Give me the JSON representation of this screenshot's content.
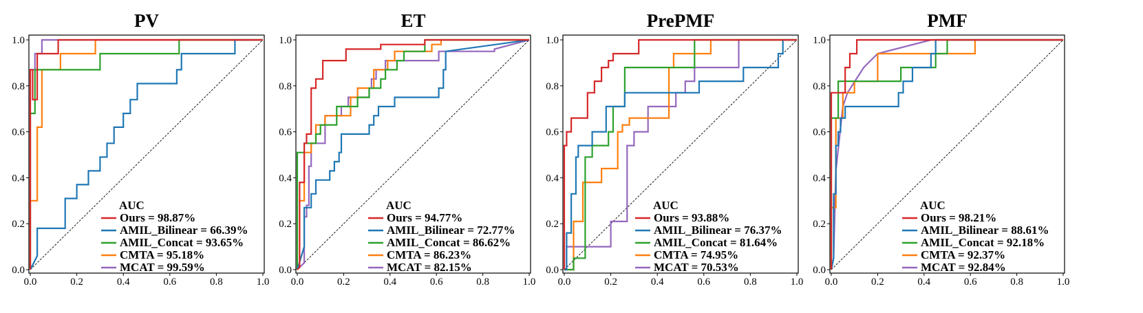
{
  "colors": {
    "Ours": "#d62728",
    "AMIL_Bilinear": "#1f77b4",
    "AMIL_Concat": "#2ca02c",
    "CMTA": "#ff7f0e",
    "MCAT": "#9467bd"
  },
  "chart_data": [
    {
      "type": "line",
      "title": "PV",
      "xlabel": "",
      "ylabel": "",
      "xlim": [
        0,
        1
      ],
      "ylim": [
        0,
        1
      ],
      "xticks": [
        "0.0",
        "0.2",
        "0.4",
        "0.6",
        "0.8",
        "1.0"
      ],
      "yticks": [
        "0.0",
        "0.2",
        "0.4",
        "0.6",
        "0.8",
        "1.0"
      ],
      "legend_title": "AUC",
      "series": [
        {
          "name": "Ours",
          "label": "Ours = 98.87%",
          "fpr": [
            0,
            0,
            0.01,
            0.01,
            0.03,
            0.03,
            0.12,
            0.12,
            1
          ],
          "tpr": [
            0,
            0.87,
            0.87,
            0.74,
            0.74,
            0.94,
            0.94,
            1,
            1
          ]
        },
        {
          "name": "AMIL_Bilinear",
          "label": "AMIL_Bilinear = 66.39%",
          "fpr": [
            0,
            0.03,
            0.03,
            0.15,
            0.15,
            0.2,
            0.2,
            0.25,
            0.25,
            0.3,
            0.3,
            0.33,
            0.33,
            0.36,
            0.36,
            0.4,
            0.4,
            0.43,
            0.43,
            0.46,
            0.46,
            0.63,
            0.63,
            0.65,
            0.65,
            0.88,
            0.88,
            1
          ],
          "tpr": [
            0,
            0.06,
            0.18,
            0.18,
            0.31,
            0.31,
            0.37,
            0.37,
            0.43,
            0.43,
            0.49,
            0.49,
            0.55,
            0.55,
            0.62,
            0.62,
            0.68,
            0.68,
            0.74,
            0.74,
            0.81,
            0.81,
            0.87,
            0.87,
            0.94,
            0.94,
            1,
            1
          ]
        },
        {
          "name": "AMIL_Concat",
          "label": "AMIL_Concat = 93.65%",
          "fpr": [
            0,
            0,
            0.02,
            0.02,
            0.3,
            0.3,
            0.64,
            0.64,
            1
          ],
          "tpr": [
            0,
            0.68,
            0.68,
            0.87,
            0.87,
            0.94,
            0.94,
            1,
            1
          ]
        },
        {
          "name": "CMTA",
          "label": "CMTA = 95.18%",
          "fpr": [
            0,
            0,
            0.03,
            0.03,
            0.05,
            0.05,
            0.13,
            0.13,
            0.28,
            0.28,
            1
          ],
          "tpr": [
            0,
            0.3,
            0.3,
            0.62,
            0.62,
            0.87,
            0.87,
            0.94,
            0.94,
            1,
            1
          ]
        },
        {
          "name": "MCAT",
          "label": "MCAT = 99.59%",
          "fpr": [
            0,
            0,
            0.02,
            0.02,
            0.05,
            0.05,
            1
          ],
          "tpr": [
            0,
            0.87,
            0.87,
            0.94,
            0.94,
            1,
            1
          ]
        }
      ]
    },
    {
      "type": "line",
      "title": "ET",
      "xlabel": "",
      "ylabel": "",
      "xlim": [
        0,
        1
      ],
      "ylim": [
        0,
        1
      ],
      "xticks": [
        "0.0",
        "0.2",
        "0.4",
        "0.6",
        "0.8",
        "1.0"
      ],
      "yticks": [
        "0.0",
        "0.2",
        "0.4",
        "0.6",
        "0.8",
        "1.0"
      ],
      "legend_title": "AUC",
      "series": [
        {
          "name": "Ours",
          "label": "Ours = 94.77%",
          "fpr": [
            0,
            0.01,
            0.01,
            0.03,
            0.03,
            0.04,
            0.04,
            0.06,
            0.06,
            0.08,
            0.08,
            0.11,
            0.11,
            0.17,
            0.17,
            0.21,
            0.21,
            0.36,
            0.36,
            0.55,
            0.55,
            1
          ],
          "tpr": [
            0,
            0.01,
            0.38,
            0.38,
            0.55,
            0.55,
            0.59,
            0.59,
            0.79,
            0.79,
            0.83,
            0.83,
            0.91,
            0.91,
            0.91,
            0.91,
            0.96,
            0.96,
            0.98,
            0.98,
            1,
            1
          ]
        },
        {
          "name": "AMIL_Bilinear",
          "label": "AMIL_Bilinear = 72.77%",
          "fpr": [
            0,
            0.03,
            0.03,
            0.06,
            0.06,
            0.08,
            0.08,
            0.14,
            0.14,
            0.16,
            0.16,
            0.18,
            0.18,
            0.19,
            0.19,
            0.31,
            0.31,
            0.33,
            0.33,
            0.35,
            0.35,
            0.42,
            0.42,
            0.61,
            0.61,
            0.63,
            0.63,
            0.64,
            0.64,
            1
          ],
          "tpr": [
            0,
            0.1,
            0.27,
            0.27,
            0.33,
            0.33,
            0.39,
            0.39,
            0.43,
            0.43,
            0.47,
            0.47,
            0.51,
            0.51,
            0.59,
            0.59,
            0.63,
            0.63,
            0.67,
            0.67,
            0.71,
            0.71,
            0.75,
            0.75,
            0.79,
            0.79,
            0.87,
            0.87,
            0.95,
            1
          ]
        },
        {
          "name": "AMIL_Concat",
          "label": "AMIL_Concat = 86.62%",
          "fpr": [
            0,
            0,
            0.03,
            0.03,
            0.08,
            0.08,
            0.1,
            0.1,
            0.17,
            0.17,
            0.26,
            0.26,
            0.31,
            0.31,
            0.36,
            0.36,
            0.38,
            0.38,
            0.43,
            0.43,
            0.46,
            0.46,
            0.55,
            0.55,
            0.63,
            0.63,
            1
          ],
          "tpr": [
            0,
            0.51,
            0.51,
            0.55,
            0.55,
            0.59,
            0.59,
            0.63,
            0.63,
            0.71,
            0.71,
            0.75,
            0.75,
            0.79,
            0.79,
            0.83,
            0.83,
            0.87,
            0.87,
            0.91,
            0.91,
            0.95,
            0.95,
            1,
            1,
            1,
            1
          ]
        },
        {
          "name": "CMTA",
          "label": "CMTA = 86.23%",
          "fpr": [
            0,
            0.01,
            0.01,
            0.03,
            0.03,
            0.06,
            0.06,
            0.08,
            0.08,
            0.12,
            0.12,
            0.23,
            0.23,
            0.26,
            0.26,
            0.33,
            0.33,
            0.39,
            0.39,
            0.42,
            0.42,
            0.58,
            0.58,
            0.62,
            0.62,
            1
          ],
          "tpr": [
            0,
            0.01,
            0.3,
            0.3,
            0.51,
            0.51,
            0.55,
            0.55,
            0.63,
            0.63,
            0.67,
            0.67,
            0.75,
            0.75,
            0.79,
            0.79,
            0.87,
            0.87,
            0.91,
            0.91,
            0.95,
            0.95,
            0.98,
            0.98,
            1,
            1
          ]
        },
        {
          "name": "MCAT",
          "label": "MCAT = 82.15%",
          "fpr": [
            0,
            0.03,
            0.03,
            0.04,
            0.04,
            0.05,
            0.05,
            0.06,
            0.06,
            0.12,
            0.12,
            0.19,
            0.19,
            0.22,
            0.22,
            0.31,
            0.31,
            0.32,
            0.32,
            0.34,
            0.34,
            0.38,
            0.38,
            0.45,
            0.45,
            0.61,
            0.61,
            0.85,
            0.85,
            1
          ],
          "tpr": [
            0,
            0.03,
            0.23,
            0.23,
            0.28,
            0.28,
            0.45,
            0.45,
            0.55,
            0.55,
            0.67,
            0.67,
            0.71,
            0.71,
            0.75,
            0.75,
            0.79,
            0.79,
            0.83,
            0.83,
            0.87,
            0.87,
            0.91,
            0.91,
            0.91,
            0.91,
            0.95,
            0.95,
            0.96,
            1
          ]
        }
      ]
    },
    {
      "type": "line",
      "title": "PrePMF",
      "xlabel": "",
      "ylabel": "",
      "xlim": [
        0,
        1
      ],
      "ylim": [
        0,
        1
      ],
      "xticks": [
        "0.0",
        "0.2",
        "0.4",
        "0.6",
        "0.8",
        "1.0"
      ],
      "yticks": [
        "0.0",
        "0.2",
        "0.4",
        "0.6",
        "0.8",
        "1.0"
      ],
      "legend_title": "AUC",
      "series": [
        {
          "name": "Ours",
          "label": "Ours = 93.88%",
          "fpr": [
            0,
            0,
            0.01,
            0.01,
            0.03,
            0.03,
            0.06,
            0.06,
            0.1,
            0.1,
            0.13,
            0.13,
            0.16,
            0.16,
            0.19,
            0.19,
            0.21,
            0.21,
            0.23,
            0.23,
            0.32,
            0.32,
            0.34,
            0.34,
            1
          ],
          "tpr": [
            0,
            0.54,
            0.54,
            0.6,
            0.6,
            0.66,
            0.66,
            0.66,
            0.66,
            0.77,
            0.77,
            0.82,
            0.82,
            0.88,
            0.88,
            0.91,
            0.91,
            0.94,
            0.94,
            0.94,
            0.94,
            1,
            1,
            1,
            1
          ]
        },
        {
          "name": "AMIL_Bilinear",
          "label": "AMIL_Bilinear = 76.37%",
          "fpr": [
            0,
            0.01,
            0.01,
            0.03,
            0.03,
            0.05,
            0.05,
            0.06,
            0.06,
            0.12,
            0.12,
            0.18,
            0.18,
            0.26,
            0.26,
            0.45,
            0.45,
            0.58,
            0.58,
            0.77,
            0.77,
            0.92,
            0.92,
            0.94,
            0.94,
            1
          ],
          "tpr": [
            0,
            0,
            0.16,
            0.16,
            0.33,
            0.33,
            0.49,
            0.49,
            0.54,
            0.54,
            0.6,
            0.6,
            0.71,
            0.71,
            0.77,
            0.77,
            0.77,
            0.77,
            0.82,
            0.82,
            0.88,
            0.88,
            0.94,
            0.94,
            1,
            1
          ]
        },
        {
          "name": "AMIL_Concat",
          "label": "AMIL_Concat = 81.64%",
          "fpr": [
            0,
            0.04,
            0.04,
            0.09,
            0.09,
            0.12,
            0.12,
            0.19,
            0.19,
            0.21,
            0.21,
            0.26,
            0.26,
            0.56,
            0.56,
            1
          ],
          "tpr": [
            0,
            0,
            0.05,
            0.05,
            0.49,
            0.49,
            0.54,
            0.54,
            0.6,
            0.6,
            0.71,
            0.71,
            0.88,
            0.88,
            1,
            1
          ]
        },
        {
          "name": "CMTA",
          "label": "CMTA = 74.95%",
          "fpr": [
            0,
            0.04,
            0.04,
            0.08,
            0.08,
            0.1,
            0.1,
            0.16,
            0.16,
            0.23,
            0.23,
            0.25,
            0.25,
            0.28,
            0.28,
            0.45,
            0.45,
            0.47,
            0.47,
            0.63,
            0.63,
            0.77,
            0.77,
            1
          ],
          "tpr": [
            0,
            0,
            0.21,
            0.21,
            0.38,
            0.38,
            0.38,
            0.38,
            0.44,
            0.44,
            0.6,
            0.6,
            0.63,
            0.63,
            0.66,
            0.66,
            0.88,
            0.88,
            0.94,
            0.94,
            1,
            1,
            1,
            1
          ]
        },
        {
          "name": "MCAT",
          "label": "MCAT = 70.53%",
          "fpr": [
            0,
            0.01,
            0.01,
            0.12,
            0.12,
            0.2,
            0.2,
            0.27,
            0.27,
            0.3,
            0.3,
            0.36,
            0.36,
            0.46,
            0.46,
            0.48,
            0.48,
            0.52,
            0.52,
            0.56,
            0.56,
            0.75,
            0.75,
            1
          ],
          "tpr": [
            0,
            0,
            0.1,
            0.1,
            0.1,
            0.1,
            0.21,
            0.21,
            0.54,
            0.54,
            0.6,
            0.6,
            0.71,
            0.71,
            0.71,
            0.71,
            0.77,
            0.77,
            0.82,
            0.82,
            0.88,
            0.88,
            1,
            1
          ]
        }
      ]
    },
    {
      "type": "line",
      "title": "PMF",
      "xlabel": "",
      "ylabel": "",
      "xlim": [
        0,
        1
      ],
      "ylim": [
        0,
        1
      ],
      "xticks": [
        "0.0",
        "0.2",
        "0.4",
        "0.6",
        "0.8",
        "1.0"
      ],
      "yticks": [
        "0.0",
        "0.2",
        "0.4",
        "0.6",
        "0.8",
        "1.0"
      ],
      "legend_title": "AUC",
      "series": [
        {
          "name": "Ours",
          "label": "Ours = 98.21%",
          "fpr": [
            0,
            0,
            0.06,
            0.06,
            0.08,
            0.08,
            0.11,
            0.11,
            1
          ],
          "tpr": [
            0,
            0.77,
            0.77,
            0.88,
            0.88,
            0.94,
            0.94,
            1,
            1
          ]
        },
        {
          "name": "AMIL_Bilinear",
          "label": "AMIL_Bilinear = 88.61%",
          "fpr": [
            0,
            0.01,
            0.01,
            0.02,
            0.02,
            0.03,
            0.03,
            0.04,
            0.04,
            0.06,
            0.06,
            0.29,
            0.29,
            0.31,
            0.31,
            0.35,
            0.35,
            0.43,
            0.43,
            0.45,
            0.45,
            1
          ],
          "tpr": [
            0,
            0.05,
            0.33,
            0.33,
            0.54,
            0.54,
            0.6,
            0.6,
            0.66,
            0.66,
            0.71,
            0.71,
            0.77,
            0.77,
            0.82,
            0.82,
            0.88,
            0.88,
            0.94,
            0.94,
            1,
            1
          ]
        },
        {
          "name": "AMIL_Concat",
          "label": "AMIL_Concat = 92.18%",
          "fpr": [
            0,
            0,
            0.03,
            0.03,
            0.08,
            0.08,
            0.16,
            0.16,
            0.3,
            0.3,
            0.45,
            0.45,
            0.5,
            0.5,
            1
          ],
          "tpr": [
            0,
            0.66,
            0.66,
            0.82,
            0.82,
            0.82,
            0.82,
            0.82,
            0.82,
            0.88,
            0.88,
            0.94,
            0.94,
            1,
            1
          ]
        },
        {
          "name": "CMTA",
          "label": "CMTA = 92.37%",
          "fpr": [
            0,
            0,
            0.02,
            0.02,
            0.04,
            0.04,
            0.05,
            0.05,
            0.1,
            0.1,
            0.14,
            0.14,
            0.2,
            0.2,
            0.62,
            0.62,
            1
          ],
          "tpr": [
            0,
            0.27,
            0.27,
            0.66,
            0.66,
            0.66,
            0.66,
            0.77,
            0.77,
            0.82,
            0.82,
            0.82,
            0.82,
            0.94,
            0.94,
            1,
            1
          ]
        },
        {
          "name": "MCAT",
          "label": "MCAT = 92.84%",
          "fpr": [
            0,
            0.01,
            0.01,
            0.02,
            0.02,
            0.05,
            0.05,
            0.07,
            0.07,
            0.14,
            0.14,
            0.2,
            0.2,
            0.43,
            0.43,
            1
          ],
          "tpr": [
            0,
            0.05,
            0.05,
            0.43,
            0.43,
            0.71,
            0.71,
            0.77,
            0.77,
            0.88,
            0.88,
            0.94,
            0.94,
            1,
            1,
            1
          ]
        }
      ]
    }
  ]
}
